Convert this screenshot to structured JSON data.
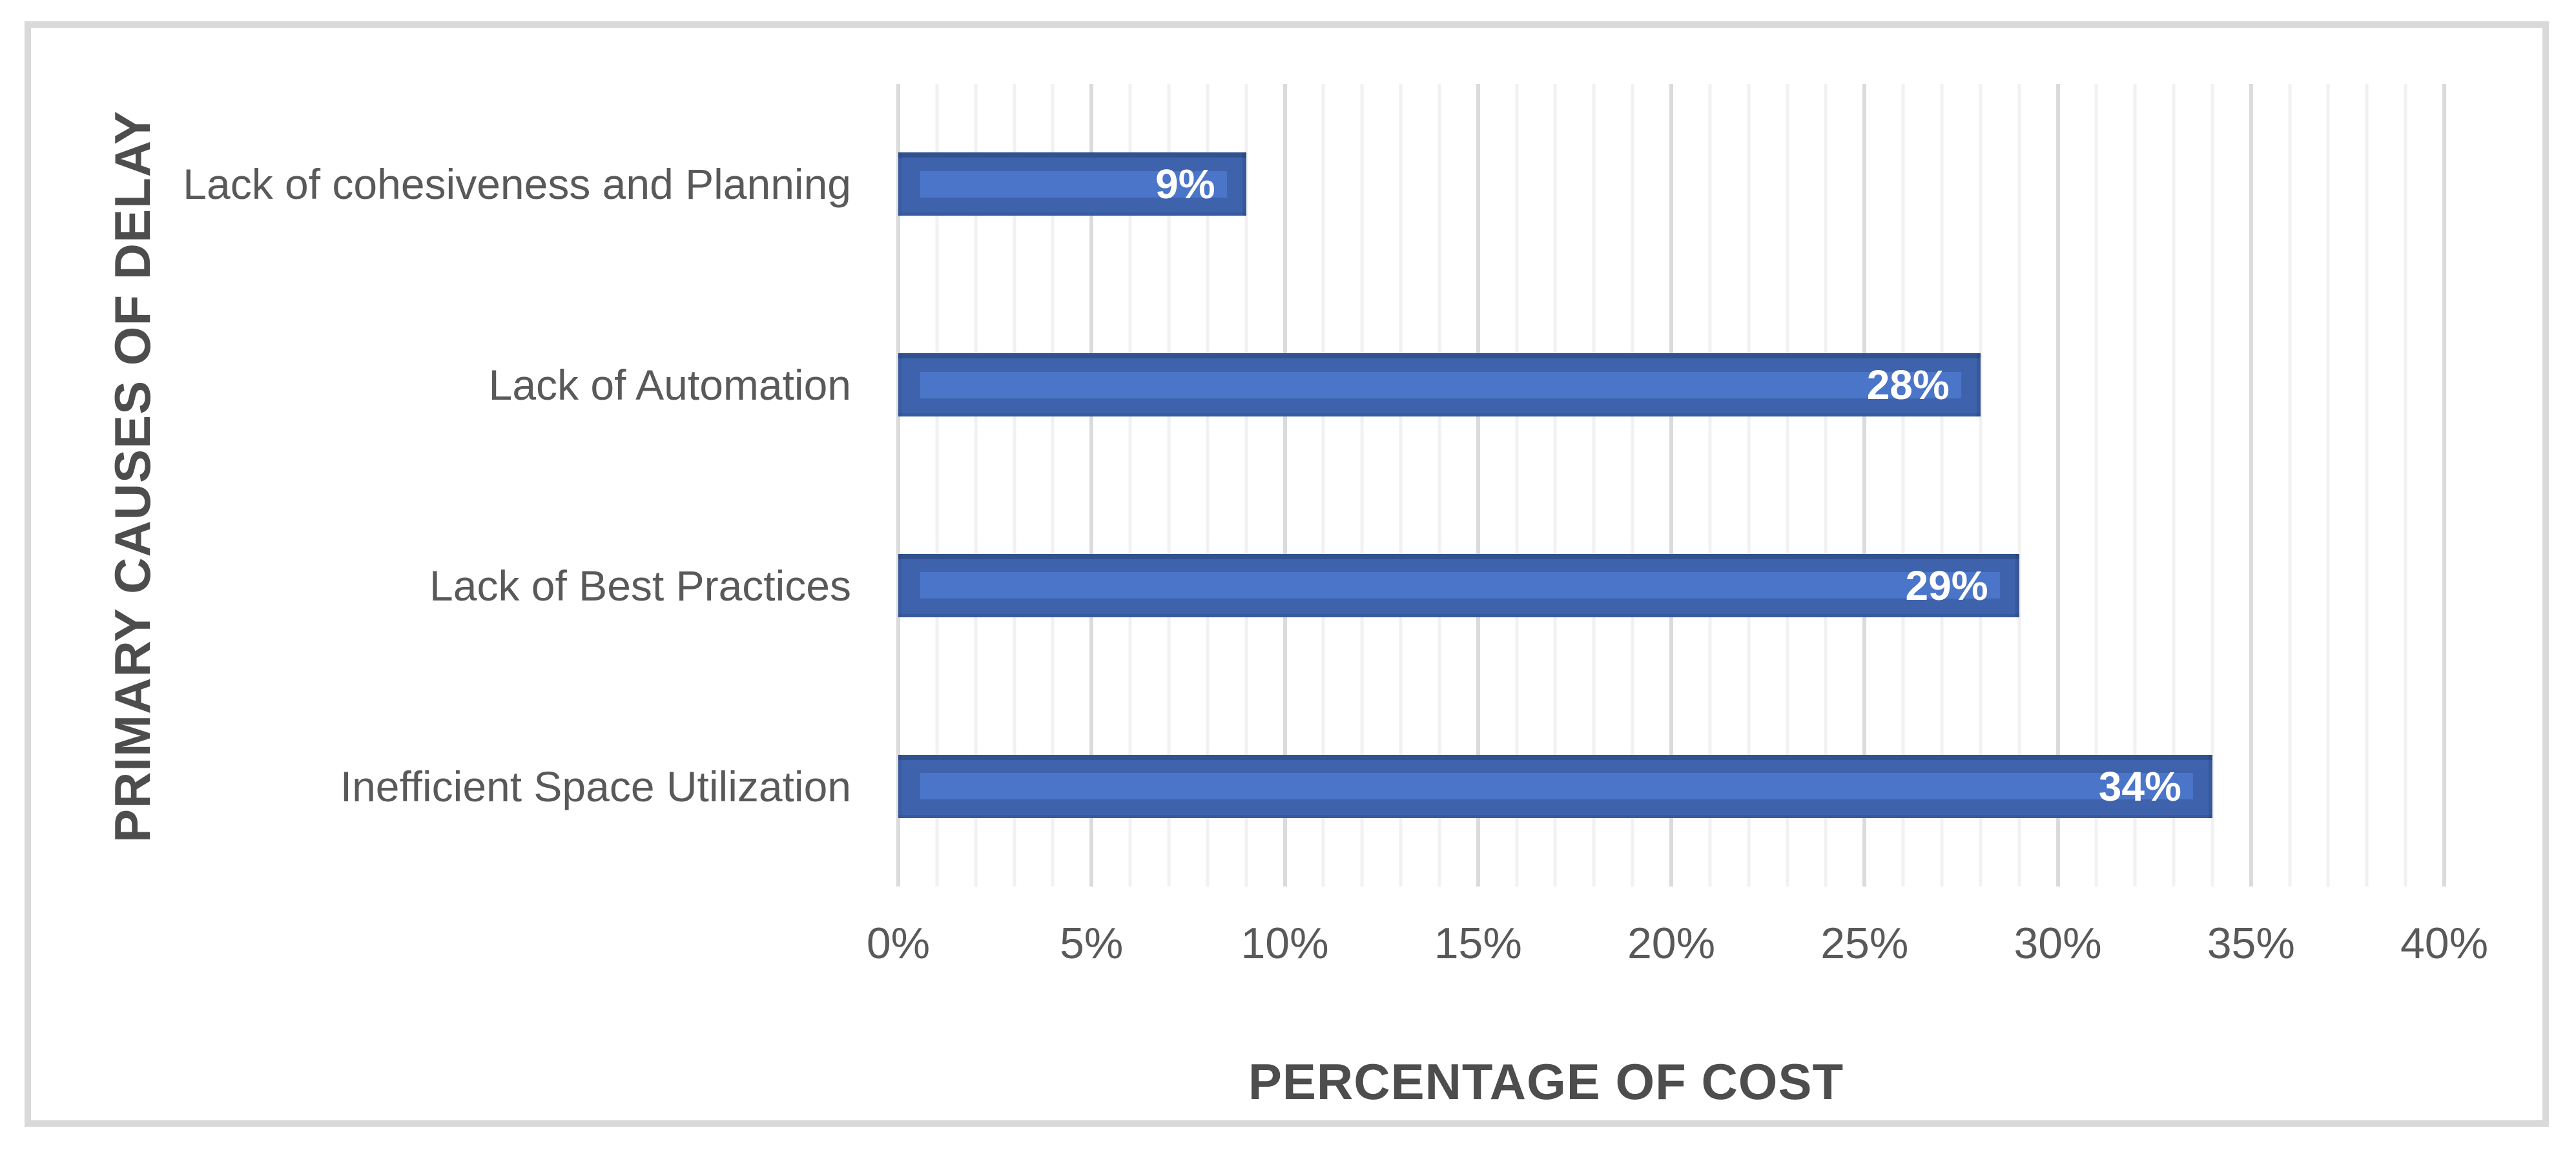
{
  "chart_data": {
    "type": "bar",
    "orientation": "horizontal",
    "title": "",
    "xlabel": "PERCENTAGE OF COST",
    "ylabel": "PRIMARY CAUSES OF DELAY",
    "categories": [
      "Lack of cohesiveness and Planning",
      "Lack of Automation",
      "Lack of Best Practices",
      "Inefficient Space Utilization"
    ],
    "values": [
      9,
      28,
      29,
      34
    ],
    "value_labels": [
      "9%",
      "28%",
      "29%",
      "34%"
    ],
    "xlim": [
      0,
      40
    ],
    "x_major_tick_step": 5,
    "x_minor_gridline_step": 1,
    "x_tick_labels": [
      "0%",
      "5%",
      "10%",
      "15%",
      "20%",
      "25%",
      "30%",
      "35%",
      "40%"
    ],
    "legend": "none",
    "grid": "vertical-minor-and-major",
    "colors": {
      "bar_fill": "#3e63ac",
      "bar_highlight": "#4a75c8",
      "value_label": "#ffffff",
      "tick_text": "#595959",
      "axis_title_text": "#4d4d4d",
      "major_gridline": "#dbdbdb",
      "minor_gridline": "#f1f1f1",
      "chart_border": "#d9d9d9",
      "background": "#ffffff"
    }
  }
}
